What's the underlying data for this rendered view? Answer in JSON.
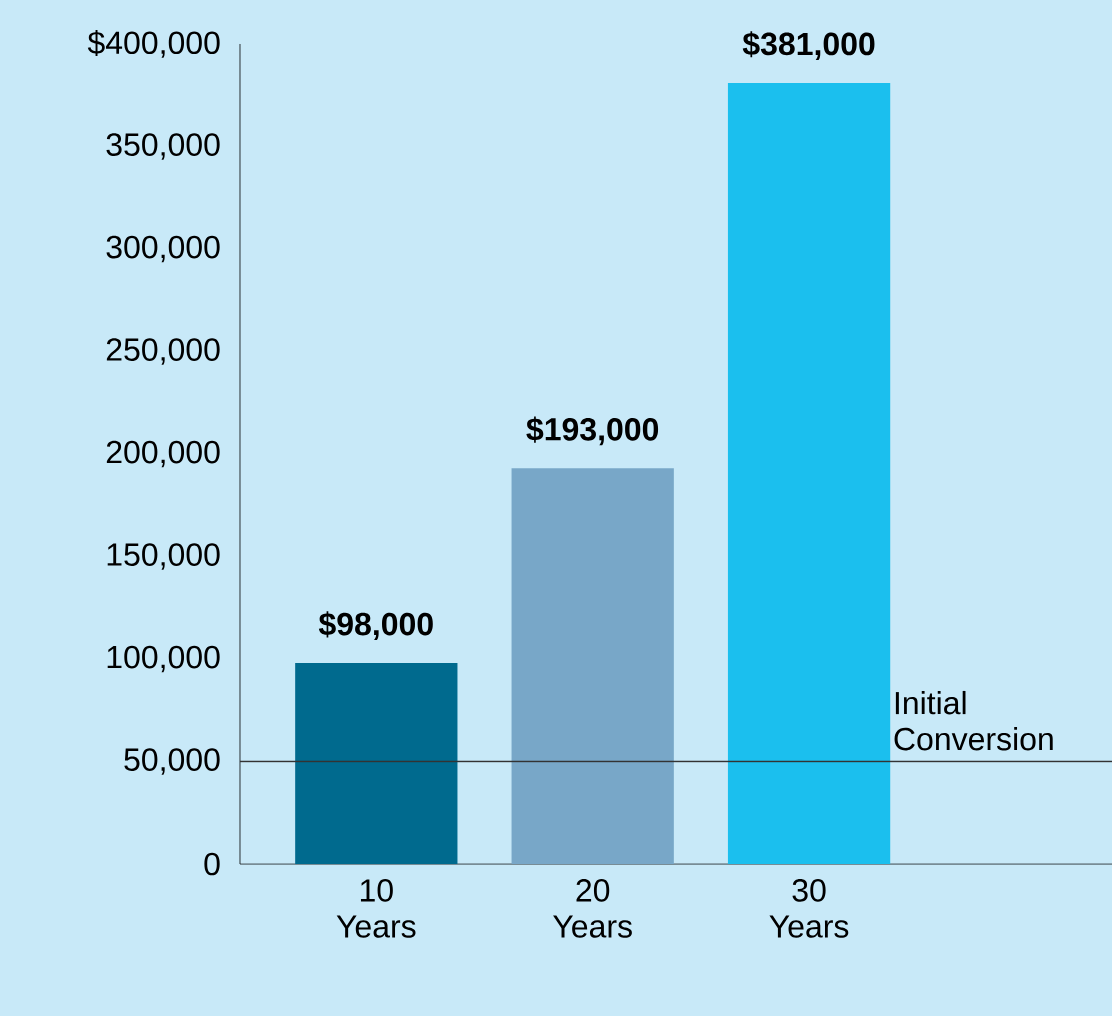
{
  "chart_data": {
    "type": "bar",
    "categories": [
      "10 Years",
      "20 Years",
      "30 Years"
    ],
    "values": [
      98000,
      193000,
      381000
    ],
    "colors": [
      "#006a8e",
      "#78a7c8",
      "#1bbfee"
    ],
    "value_labels": [
      "$98,000",
      "$193,000",
      "$381,000"
    ],
    "ylim": [
      0,
      400000
    ],
    "yticks": [
      0,
      {
        "value": 50000,
        "label": "50,000"
      },
      {
        "value": 100000,
        "label": "100,000"
      },
      {
        "value": 150000,
        "label": "150,000"
      },
      {
        "value": 200000,
        "label": "200,000"
      },
      {
        "value": 250000,
        "label": "250,000"
      },
      {
        "value": 300000,
        "label": "300,000"
      },
      {
        "value": 350000,
        "label": "350,000"
      },
      {
        "value": 400000,
        "label": "$400,000"
      }
    ],
    "ref_lines": [
      {
        "axis": "y",
        "value": 50000,
        "label": "Initial Conversion",
        "color": "#333333"
      }
    ],
    "grid": false
  }
}
